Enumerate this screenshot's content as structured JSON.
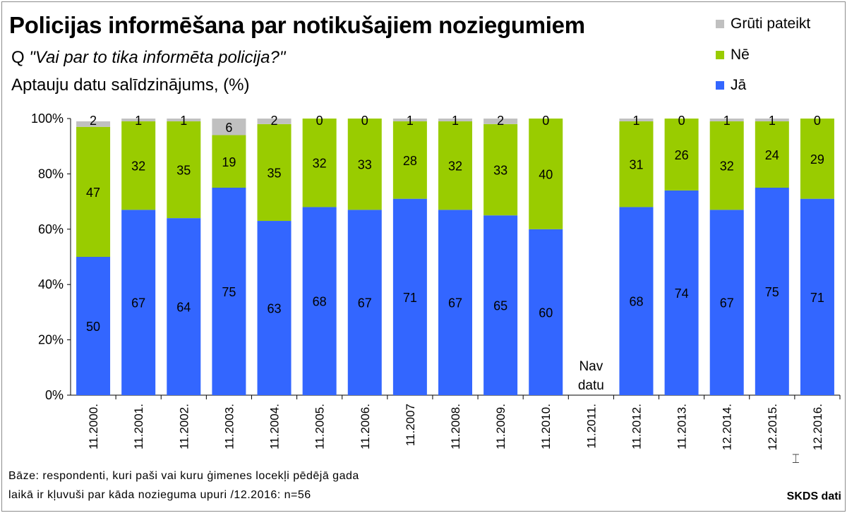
{
  "title": "Policijas informēšana par notikušajiem noziegumiem",
  "question_prefix": "Q ",
  "question": "\"Vai par to tika informēta policija?\"",
  "subtitle": "Aptauju datu salīdzinājums, (%)",
  "footnote_line1": "Bāze: respondenti, kuri paši vai kuru ģimenes locekļi pēdējā gada",
  "footnote_line2": "laikā ir kļuvuši par kāda nozieguma upuri  /12.2016: n=56",
  "source": "SKDS dati",
  "no_data_label": [
    "Nav",
    "datu"
  ],
  "colors": {
    "ja": "#3366ff",
    "ne": "#99cc00",
    "gruti": "#c0c0c0"
  },
  "cursor_icon": "text-cursor-icon",
  "chart_data": {
    "type": "bar",
    "stacked": true,
    "categories": [
      "11.2000.",
      "11.2001.",
      "11.2002.",
      "11.2003.",
      "11.2004.",
      "11.2005.",
      "11.2006.",
      "11.2007",
      "11.2008.",
      "11.2009.",
      "11.2010.",
      "11.2011.",
      "11.2012.",
      "11.2013.",
      "12.2014.",
      "12.2015.",
      "12.2016."
    ],
    "series": [
      {
        "name": "Jā",
        "values": [
          50,
          67,
          64,
          75,
          63,
          68,
          67,
          71,
          67,
          65,
          60,
          null,
          68,
          74,
          67,
          75,
          71
        ]
      },
      {
        "name": "Nē",
        "values": [
          47,
          32,
          35,
          19,
          35,
          32,
          33,
          28,
          32,
          33,
          40,
          null,
          31,
          26,
          32,
          24,
          29
        ]
      },
      {
        "name": "Grūti pateikt",
        "values": [
          2,
          1,
          1,
          6,
          2,
          0,
          0,
          1,
          1,
          2,
          0,
          null,
          1,
          0,
          1,
          1,
          0
        ]
      }
    ],
    "legend_order": [
      "Grūti pateikt",
      "Nē",
      "Jā"
    ],
    "ylim": [
      0,
      100
    ],
    "yticks": [
      "0%",
      "20%",
      "40%",
      "60%",
      "80%",
      "100%"
    ],
    "legend_position": "top-right",
    "grid": false
  }
}
